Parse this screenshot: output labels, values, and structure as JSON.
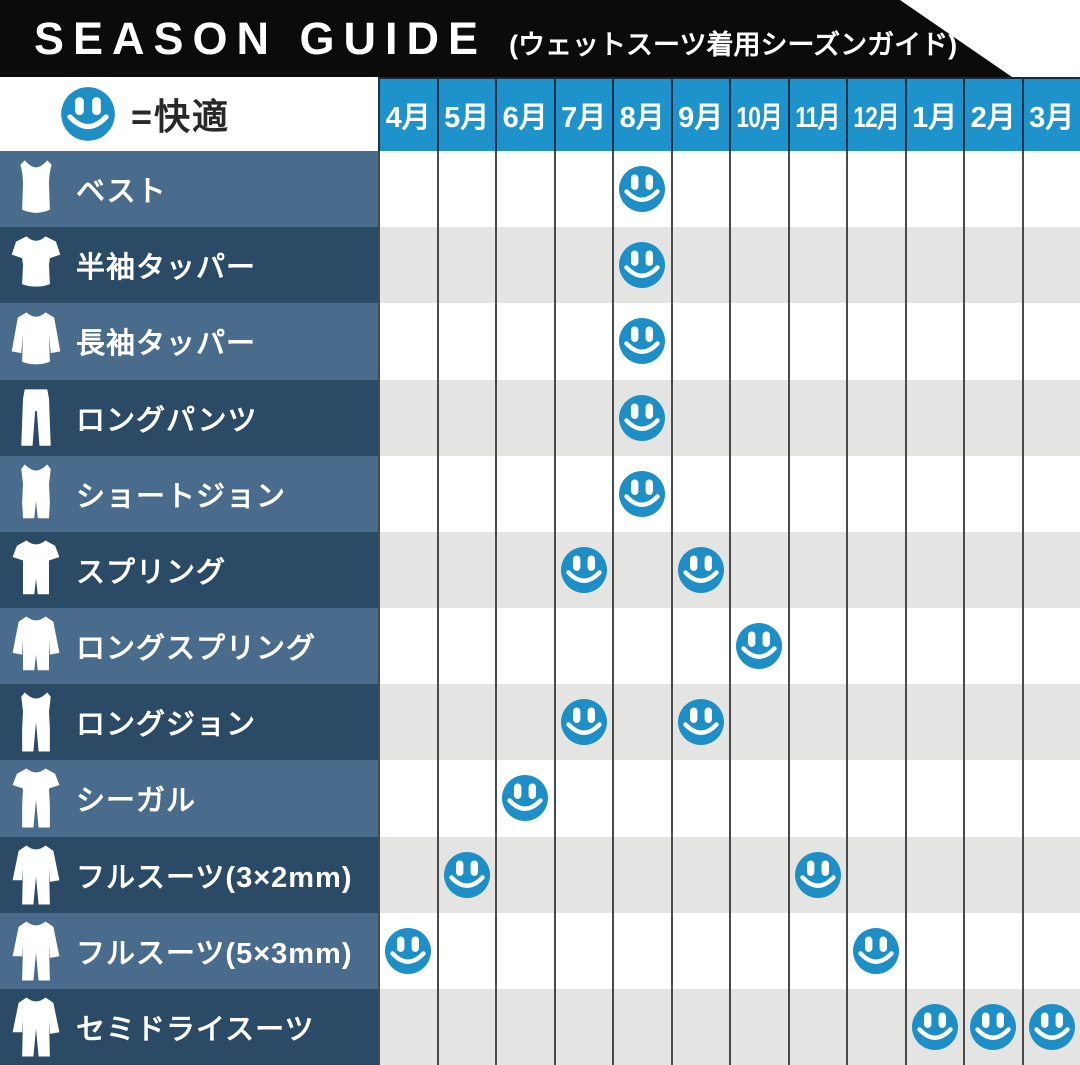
{
  "banner": {
    "title": "SEASON GUIDE",
    "subtitle": "(ウェットスーツ着用シーズンガイド)"
  },
  "legend": {
    "icon": "smiley-icon",
    "label": "=快適"
  },
  "chart_data": {
    "type": "table",
    "title": "SEASON GUIDE (ウェットスーツ着用シーズンガイド)",
    "legend_meaning": "smiley = 快適",
    "columns": [
      "4月",
      "5月",
      "6月",
      "7月",
      "8月",
      "9月",
      "10月",
      "11月",
      "12月",
      "1月",
      "2月",
      "3月"
    ],
    "rows": [
      {
        "label": "ベスト",
        "icon": "vest-icon",
        "comfortable_months": [
          "8月"
        ]
      },
      {
        "label": "半袖タッパー",
        "icon": "short-sleeve-top-icon",
        "comfortable_months": [
          "8月"
        ]
      },
      {
        "label": "長袖タッパー",
        "icon": "long-sleeve-top-icon",
        "comfortable_months": [
          "8月"
        ]
      },
      {
        "label": "ロングパンツ",
        "icon": "pants-icon",
        "comfortable_months": [
          "8月"
        ]
      },
      {
        "label": "ショートジョン",
        "icon": "short-john-icon",
        "comfortable_months": [
          "8月"
        ]
      },
      {
        "label": "スプリング",
        "icon": "spring-icon",
        "comfortable_months": [
          "7月",
          "9月"
        ]
      },
      {
        "label": "ロングスプリング",
        "icon": "long-spring-icon",
        "comfortable_months": [
          "10月"
        ]
      },
      {
        "label": "ロングジョン",
        "icon": "long-john-icon",
        "comfortable_months": [
          "7月",
          "9月"
        ]
      },
      {
        "label": "シーガル",
        "icon": "seagull-icon",
        "comfortable_months": [
          "6月"
        ]
      },
      {
        "label": "フルスーツ(3×2mm)",
        "icon": "full-suit-icon",
        "comfortable_months": [
          "5月",
          "11月"
        ]
      },
      {
        "label": "フルスーツ(5×3mm)",
        "icon": "full-suit-icon",
        "comfortable_months": [
          "4月",
          "12月"
        ]
      },
      {
        "label": "セミドライスーツ",
        "icon": "semi-dry-suit-icon",
        "comfortable_months": [
          "1月",
          "2月",
          "3月"
        ]
      }
    ]
  },
  "colors": {
    "banner_black": "#0b0b0b",
    "header_blue": "#1e93cb",
    "smiley_blue": "#1d8fc6",
    "row_label_light": "#4a6c8c",
    "row_label_dark": "#2a4a66",
    "stripe_gray": "#e4e4e2"
  }
}
